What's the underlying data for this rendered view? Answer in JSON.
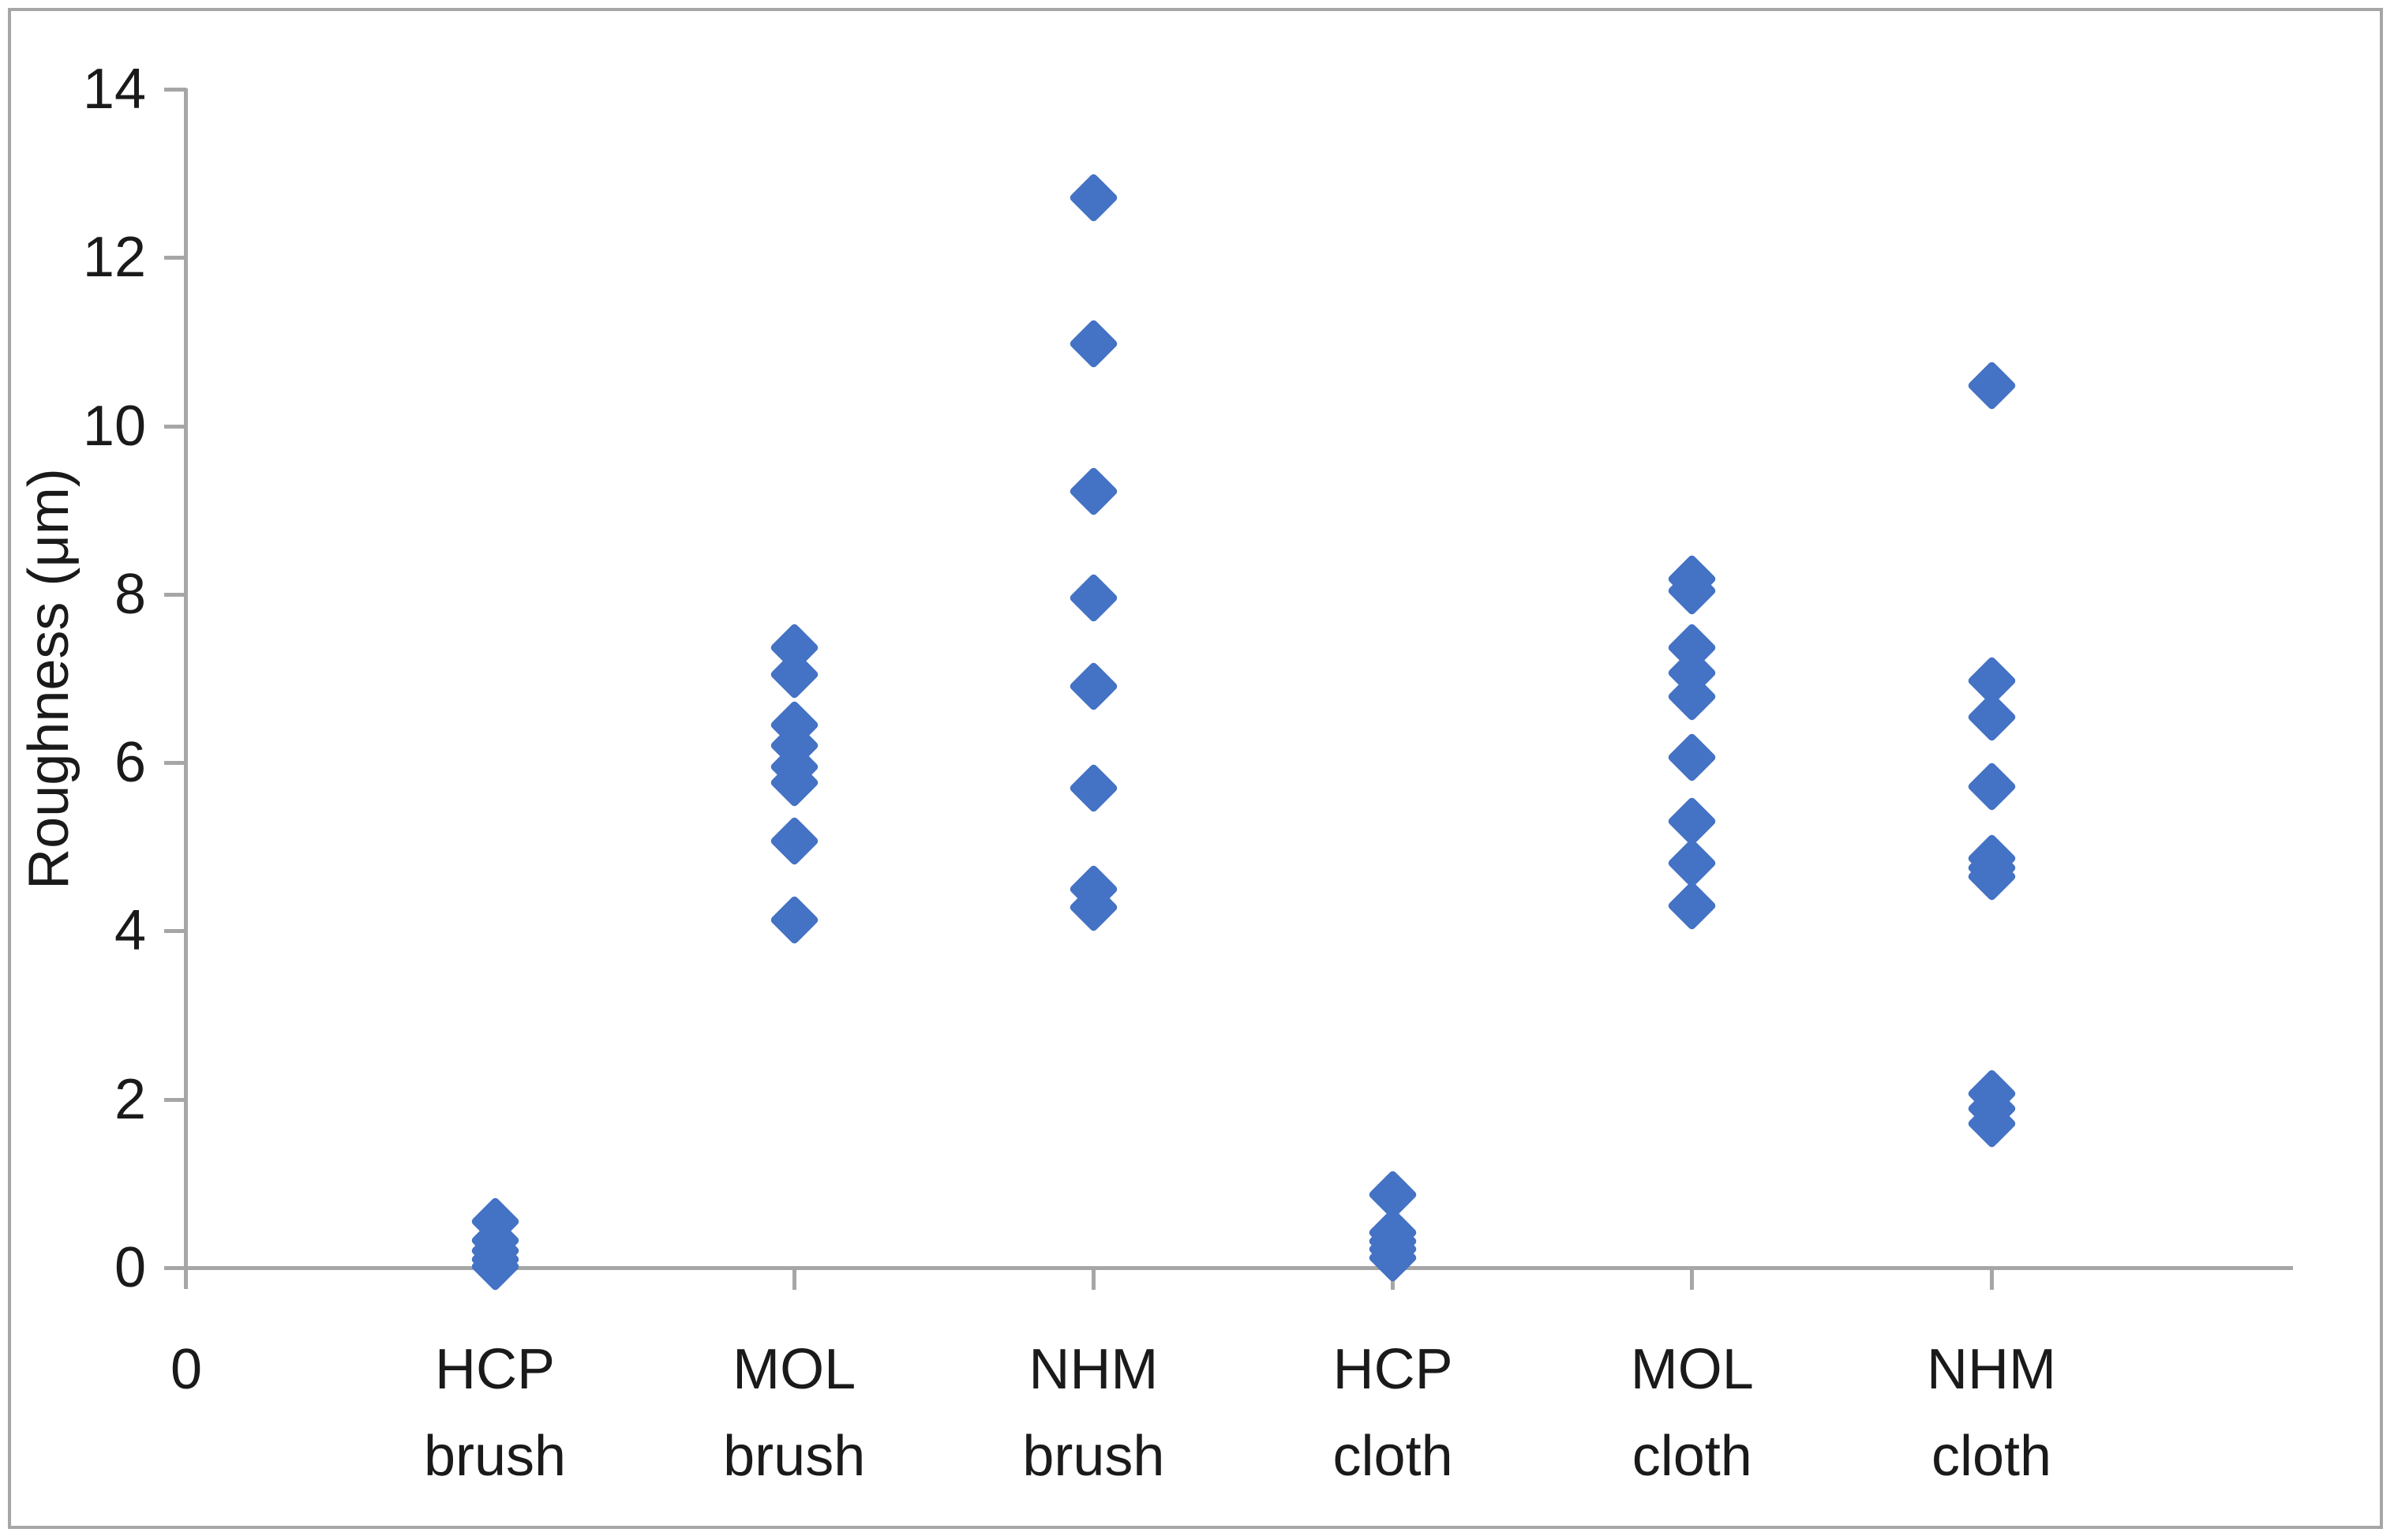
{
  "chart_data": {
    "type": "scatter",
    "title": "",
    "xlabel": "",
    "ylabel": "Roughness (μm)",
    "ylim": [
      0,
      14
    ],
    "yticks": [
      0,
      2,
      4,
      6,
      8,
      10,
      12,
      14
    ],
    "grid": "off",
    "legend": "none",
    "origin_label": "0",
    "marker": {
      "shape": "diamond",
      "color": "#4472C4"
    },
    "axis_color": "#A6A6A6",
    "text_color": "#1A1A1A",
    "categories": [
      "HCP brush",
      "MOL brush",
      "NHM brush",
      "HCP cloth",
      "MOL cloth",
      "NHM cloth"
    ],
    "series": [
      {
        "name": "HCP brush",
        "label_line1": "HCP",
        "label_line2": "brush",
        "values": [
          0.55,
          0.32,
          0.2,
          0.1,
          0.01
        ]
      },
      {
        "name": "MOL brush",
        "label_line1": "MOL",
        "label_line2": "brush",
        "values": [
          7.37,
          7.05,
          6.45,
          6.2,
          5.95,
          5.76,
          5.07,
          4.13
        ]
      },
      {
        "name": "NHM brush",
        "label_line1": "NHM",
        "label_line2": "brush",
        "values": [
          12.71,
          10.98,
          9.22,
          7.96,
          6.91,
          5.7,
          4.5,
          4.28
        ]
      },
      {
        "name": "HCP cloth",
        "label_line1": "HCP",
        "label_line2": "cloth",
        "values": [
          0.87,
          0.42,
          0.31,
          0.22,
          0.12
        ]
      },
      {
        "name": "MOL cloth",
        "label_line1": "MOL",
        "label_line2": "cloth",
        "values": [
          8.18,
          8.04,
          7.37,
          7.07,
          6.78,
          6.06,
          5.3,
          4.81,
          4.3
        ]
      },
      {
        "name": "NHM cloth",
        "label_line1": "NHM",
        "label_line2": "cloth",
        "values": [
          10.48,
          6.97,
          6.54,
          5.72,
          4.86,
          4.75,
          4.65,
          2.07,
          1.89,
          1.71
        ]
      }
    ]
  }
}
